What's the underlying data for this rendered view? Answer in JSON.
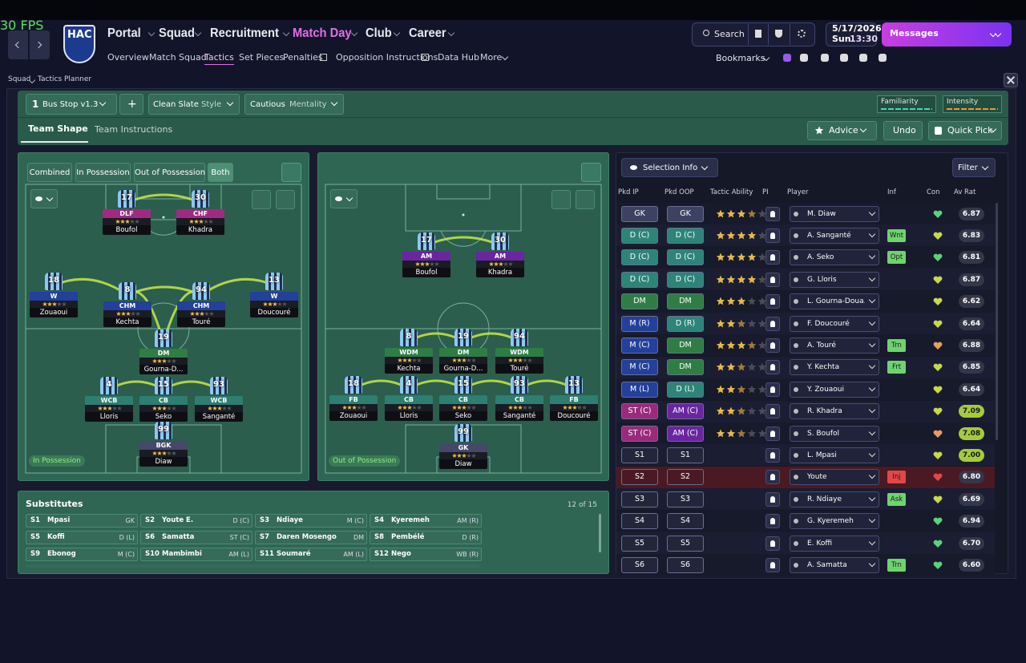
{
  "fps": "30 FPS",
  "header": {
    "club": "HAC",
    "nav": [
      "Portal",
      "Squad",
      "Recruitment",
      "Match Day",
      "Club",
      "Career"
    ],
    "subnav": [
      "Overview",
      "Match Squad",
      "Tactics",
      "Set Pieces",
      "Penalties",
      "Opposition Instructions",
      "Data Hub",
      "More"
    ],
    "search": "Search",
    "date": "5/17/2026",
    "day": "Sun",
    "time": "13:30",
    "messages": "Messages",
    "bookmarks": "Bookmarks"
  },
  "breadcrumb": [
    "Squad",
    "Tactics Planner"
  ],
  "toolbar": {
    "slot": "1",
    "tactic": "Bus Stop v1.3",
    "add": "+",
    "style_value": "Clean Slate",
    "style_label": "Style",
    "mentality_value": "Cautious",
    "mentality_label": "Mentality",
    "familiarity": "Familiarity",
    "intensity": "Intensity"
  },
  "tabs": [
    "Team Shape",
    "Team Instructions"
  ],
  "buttons": {
    "advice": "Advice",
    "undo": "Undo",
    "quick_pick": "Quick Pick"
  },
  "shape_filters": [
    "Combined",
    "In Possession",
    "Out of Possession",
    "Both"
  ],
  "pitches": [
    {
      "label": "In Possession",
      "players": [
        {
          "number": "17",
          "role": "DLF",
          "name": "Boufol",
          "color": "#a02a82"
        },
        {
          "number": "30",
          "role": "CHF",
          "name": "Khadra",
          "color": "#a02a82"
        },
        {
          "number": "18",
          "role": "W",
          "name": "Zouaoui",
          "color": "#23409a"
        },
        {
          "number": "8",
          "role": "CHM",
          "name": "Kechta",
          "color": "#23409a"
        },
        {
          "number": "94",
          "role": "CHM",
          "name": "Touré",
          "color": "#23409a"
        },
        {
          "number": "13",
          "role": "W",
          "name": "Doucouré",
          "color": "#23409a"
        },
        {
          "number": "19",
          "role": "DM",
          "name": "Gourna-D...",
          "color": "#2f7d45"
        },
        {
          "number": "4",
          "role": "WCB",
          "name": "Lloris",
          "color": "#2e7e72"
        },
        {
          "number": "15",
          "role": "CB",
          "name": "Seko",
          "color": "#2e7e72"
        },
        {
          "number": "93",
          "role": "WCB",
          "name": "Sanganté",
          "color": "#2e7e72"
        },
        {
          "number": "99",
          "role": "BGK",
          "name": "Diaw",
          "color": "#454868"
        }
      ]
    },
    {
      "label": "Out of Possession",
      "players": [
        {
          "number": "17",
          "role": "AM",
          "name": "Boufol",
          "color": "#6a25a0"
        },
        {
          "number": "30",
          "role": "AM",
          "name": "Khadra",
          "color": "#6a25a0"
        },
        {
          "number": "8",
          "role": "WDM",
          "name": "Kechta",
          "color": "#2f7d45"
        },
        {
          "number": "19",
          "role": "DM",
          "name": "Gourna-D...",
          "color": "#2f7d45"
        },
        {
          "number": "94",
          "role": "WDM",
          "name": "Touré",
          "color": "#2f7d45"
        },
        {
          "number": "18",
          "role": "FB",
          "name": "Zouaoui",
          "color": "#2e7e72"
        },
        {
          "number": "4",
          "role": "CB",
          "name": "Lloris",
          "color": "#2e7e72"
        },
        {
          "number": "15",
          "role": "CB",
          "name": "Seko",
          "color": "#2e7e72"
        },
        {
          "number": "93",
          "role": "CB",
          "name": "Sanganté",
          "color": "#2e7e72"
        },
        {
          "number": "13",
          "role": "FB",
          "name": "Doucouré",
          "color": "#2e7e72"
        },
        {
          "number": "99",
          "role": "GK",
          "name": "Diaw",
          "color": "#454868"
        }
      ]
    }
  ],
  "substitutes": {
    "title": "Substitutes",
    "count": "12 of 15",
    "list": [
      {
        "slot": "S1",
        "name": "Mpasi",
        "pos": "GK"
      },
      {
        "slot": "S2",
        "name": "Youte E.",
        "pos": "D (C)"
      },
      {
        "slot": "S3",
        "name": "Ndiaye",
        "pos": "M (C)"
      },
      {
        "slot": "S4",
        "name": "Kyeremeh",
        "pos": "AM (R)"
      },
      {
        "slot": "S5",
        "name": "Koffi",
        "pos": "D (L)"
      },
      {
        "slot": "S6",
        "name": "Samatta",
        "pos": "ST (C)"
      },
      {
        "slot": "S7",
        "name": "Daren Mosengo",
        "pos": "DM"
      },
      {
        "slot": "S8",
        "name": "Pembélé",
        "pos": "D (R)"
      },
      {
        "slot": "S9",
        "name": "Ebonog",
        "pos": "M (C)"
      },
      {
        "slot": "S10",
        "name": "Mambimbi",
        "pos": "AM (L)"
      },
      {
        "slot": "S11",
        "name": "Soumaré",
        "pos": "AM (L)"
      },
      {
        "slot": "S12",
        "name": "Nego",
        "pos": "WB (R)"
      }
    ]
  },
  "selection": {
    "title": "Selection Info",
    "filter": "Filter",
    "columns": [
      "Pkd IP",
      "Pkd OOP",
      "Tactic Ability",
      "PI",
      "Player",
      "Inf",
      "Con",
      "Av Rat"
    ],
    "rows": [
      {
        "ip": "GK",
        "oop": "GK",
        "ip_color": "#3e4262",
        "oop_color": "#3e4262",
        "ability": 3.5,
        "player": "M. Diaw",
        "inf": null,
        "inf_color": null,
        "con_color": "#5fd07a",
        "rating": "6.87",
        "rat_color": "#34374a"
      },
      {
        "ip": "D (C)",
        "oop": "D (C)",
        "ip_color": "#2d8479",
        "oop_color": "#2d8479",
        "ability": 4,
        "player": "A. Sanganté",
        "inf": "Wnt",
        "inf_color": "#6fd36f",
        "con_color": "#c8d84a",
        "rating": "6.83",
        "rat_color": "#34374a"
      },
      {
        "ip": "D (C)",
        "oop": "D (C)",
        "ip_color": "#2d8479",
        "oop_color": "#2d8479",
        "ability": 4,
        "player": "A. Seko",
        "inf": "Opt",
        "inf_color": "#6fd36f",
        "con_color": "#5fd07a",
        "rating": "6.81",
        "rat_color": "#34374a"
      },
      {
        "ip": "D (C)",
        "oop": "D (C)",
        "ip_color": "#2d8479",
        "oop_color": "#2d8479",
        "ability": 4,
        "player": "G. Lloris",
        "inf": null,
        "inf_color": null,
        "con_color": "#c8d84a",
        "rating": "6.87",
        "rat_color": "#34374a"
      },
      {
        "ip": "DM",
        "oop": "DM",
        "ip_color": "#2f7d45",
        "oop_color": "#2f7d45",
        "ability": 3,
        "player": "L. Gourna-Doua...",
        "inf": null,
        "inf_color": null,
        "con_color": "#c8d84a",
        "rating": "6.62",
        "rat_color": "#34374a"
      },
      {
        "ip": "M (R)",
        "oop": "D (R)",
        "ip_color": "#23409a",
        "oop_color": "#2d8479",
        "ability": 2.5,
        "player": "F. Doucouré",
        "inf": null,
        "inf_color": null,
        "con_color": "#c8d84a",
        "rating": "6.64",
        "rat_color": "#34374a"
      },
      {
        "ip": "M (C)",
        "oop": "DM",
        "ip_color": "#23409a",
        "oop_color": "#2f7d45",
        "ability": 3.5,
        "player": "A. Touré",
        "inf": "Trn",
        "inf_color": "#6fd36f",
        "con_color": "#e0a060",
        "rating": "6.88",
        "rat_color": "#34374a"
      },
      {
        "ip": "M (C)",
        "oop": "DM",
        "ip_color": "#23409a",
        "oop_color": "#2f7d45",
        "ability": 2.5,
        "player": "Y. Kechta",
        "inf": "Frt",
        "inf_color": "#6fd36f",
        "con_color": "#c8d84a",
        "rating": "6.85",
        "rat_color": "#34374a"
      },
      {
        "ip": "M (L)",
        "oop": "D (L)",
        "ip_color": "#23409a",
        "oop_color": "#2d8479",
        "ability": 2.5,
        "player": "Y. Zouaoui",
        "inf": null,
        "inf_color": null,
        "con_color": "#c8d84a",
        "rating": "6.64",
        "rat_color": "#34374a"
      },
      {
        "ip": "ST (C)",
        "oop": "AM (C)",
        "ip_color": "#9a2a7a",
        "oop_color": "#6a25a0",
        "ability": 2.5,
        "player": "R. Khadra",
        "inf": null,
        "inf_color": null,
        "con_color": "#c8d84a",
        "rating": "7.09",
        "rat_color": "#a8c93e"
      },
      {
        "ip": "ST (C)",
        "oop": "AM (C)",
        "ip_color": "#9a2a7a",
        "oop_color": "#6a25a0",
        "ability": 2.5,
        "player": "S. Boufol",
        "inf": null,
        "inf_color": null,
        "con_color": "#e0a060",
        "rating": "7.08",
        "rat_color": "#a8c93e"
      },
      {
        "ip": "S1",
        "oop": "S1",
        "ip_color": "#23263a",
        "oop_color": "#23263a",
        "ability": null,
        "player": "L. Mpasi",
        "inf": null,
        "inf_color": null,
        "con_color": "#c8d84a",
        "rating": "7.00",
        "rat_color": "#a8c93e"
      },
      {
        "ip": "S2",
        "oop": "S2",
        "ip_color": "#4a1a24",
        "oop_color": "#4a1a24",
        "ability": null,
        "player": "Youte",
        "inf": "Inj",
        "inf_color": "#e04848",
        "con_color": "#e04848",
        "rating": "6.80",
        "rat_color": "#34374a"
      },
      {
        "ip": "S3",
        "oop": "S3",
        "ip_color": "#23263a",
        "oop_color": "#23263a",
        "ability": null,
        "player": "R. Ndiaye",
        "inf": "Ask",
        "inf_color": "#6fd36f",
        "con_color": "#c8d84a",
        "rating": "6.69",
        "rat_color": "#34374a"
      },
      {
        "ip": "S4",
        "oop": "S4",
        "ip_color": "#23263a",
        "oop_color": "#23263a",
        "ability": null,
        "player": "G. Kyeremeh",
        "inf": null,
        "inf_color": null,
        "con_color": "#5fd07a",
        "rating": "6.94",
        "rat_color": "#34374a"
      },
      {
        "ip": "S5",
        "oop": "S5",
        "ip_color": "#23263a",
        "oop_color": "#23263a",
        "ability": null,
        "player": "E. Koffi",
        "inf": null,
        "inf_color": null,
        "con_color": "#5fd07a",
        "rating": "6.70",
        "rat_color": "#34374a"
      },
      {
        "ip": "S6",
        "oop": "S6",
        "ip_color": "#23263a",
        "oop_color": "#23263a",
        "ability": null,
        "player": "A. Samatta",
        "inf": "Trn",
        "inf_color": "#6fd36f",
        "con_color": "#5fd07a",
        "rating": "6.60",
        "rat_color": "#34374a"
      }
    ]
  }
}
